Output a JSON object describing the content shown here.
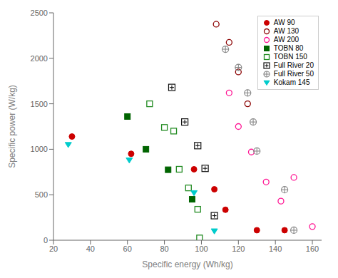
{
  "chart_data": {
    "type": "scatter",
    "xlabel": "Specific energy (Wh/kg)",
    "ylabel": "Specific power (W/kg)",
    "xlim": [
      20,
      165
    ],
    "ylim": [
      0,
      2500
    ],
    "xticks": [
      20,
      40,
      60,
      80,
      100,
      120,
      140,
      160
    ],
    "yticks": [
      0,
      500,
      1000,
      1500,
      2000,
      2500
    ],
    "grid": false,
    "legend": "upper right",
    "series": [
      {
        "name": "AW 90",
        "color": "#cc0000",
        "marker": "circle",
        "x": [
          30,
          62,
          96,
          107,
          113,
          130,
          145
        ],
        "y": [
          1140,
          950,
          780,
          560,
          335,
          110,
          110
        ]
      },
      {
        "name": "AW 130",
        "color": "#8b0000",
        "marker": "circle_open",
        "x": [
          108,
          115,
          120,
          125
        ],
        "y": [
          2375,
          2175,
          1850,
          1500
        ]
      },
      {
        "name": "AW 200",
        "color": "#ff1493",
        "marker": "circle_open",
        "x": [
          115,
          120,
          127,
          135,
          143,
          150,
          160
        ],
        "y": [
          1620,
          1250,
          970,
          640,
          430,
          690,
          150
        ]
      },
      {
        "name": "TOBN 80",
        "color": "#006400",
        "marker": "square",
        "x": [
          60,
          70,
          82,
          95
        ],
        "y": [
          1360,
          1000,
          775,
          450
        ]
      },
      {
        "name": "TOBN 150",
        "color": "#228B22",
        "marker": "square_open",
        "x": [
          72,
          80,
          85,
          88,
          93,
          98,
          99
        ],
        "y": [
          1500,
          1240,
          1200,
          780,
          575,
          340,
          25
        ]
      },
      {
        "name": "Full River 20",
        "color": "#111111",
        "marker": "square_plus",
        "x": [
          84,
          91,
          98,
          102,
          107
        ],
        "y": [
          1680,
          1300,
          1040,
          790,
          270
        ]
      },
      {
        "name": "Full River 50",
        "color": "#888888",
        "marker": "circle_plus",
        "x": [
          113,
          120,
          125,
          128,
          130,
          145,
          150
        ],
        "y": [
          2100,
          1900,
          1620,
          1300,
          980,
          555,
          110
        ]
      },
      {
        "name": "Kokam 145",
        "color": "#00cccc",
        "marker": "triangle_down",
        "x": [
          28,
          61,
          96,
          107
        ],
        "y": [
          1050,
          880,
          520,
          100
        ]
      }
    ]
  }
}
